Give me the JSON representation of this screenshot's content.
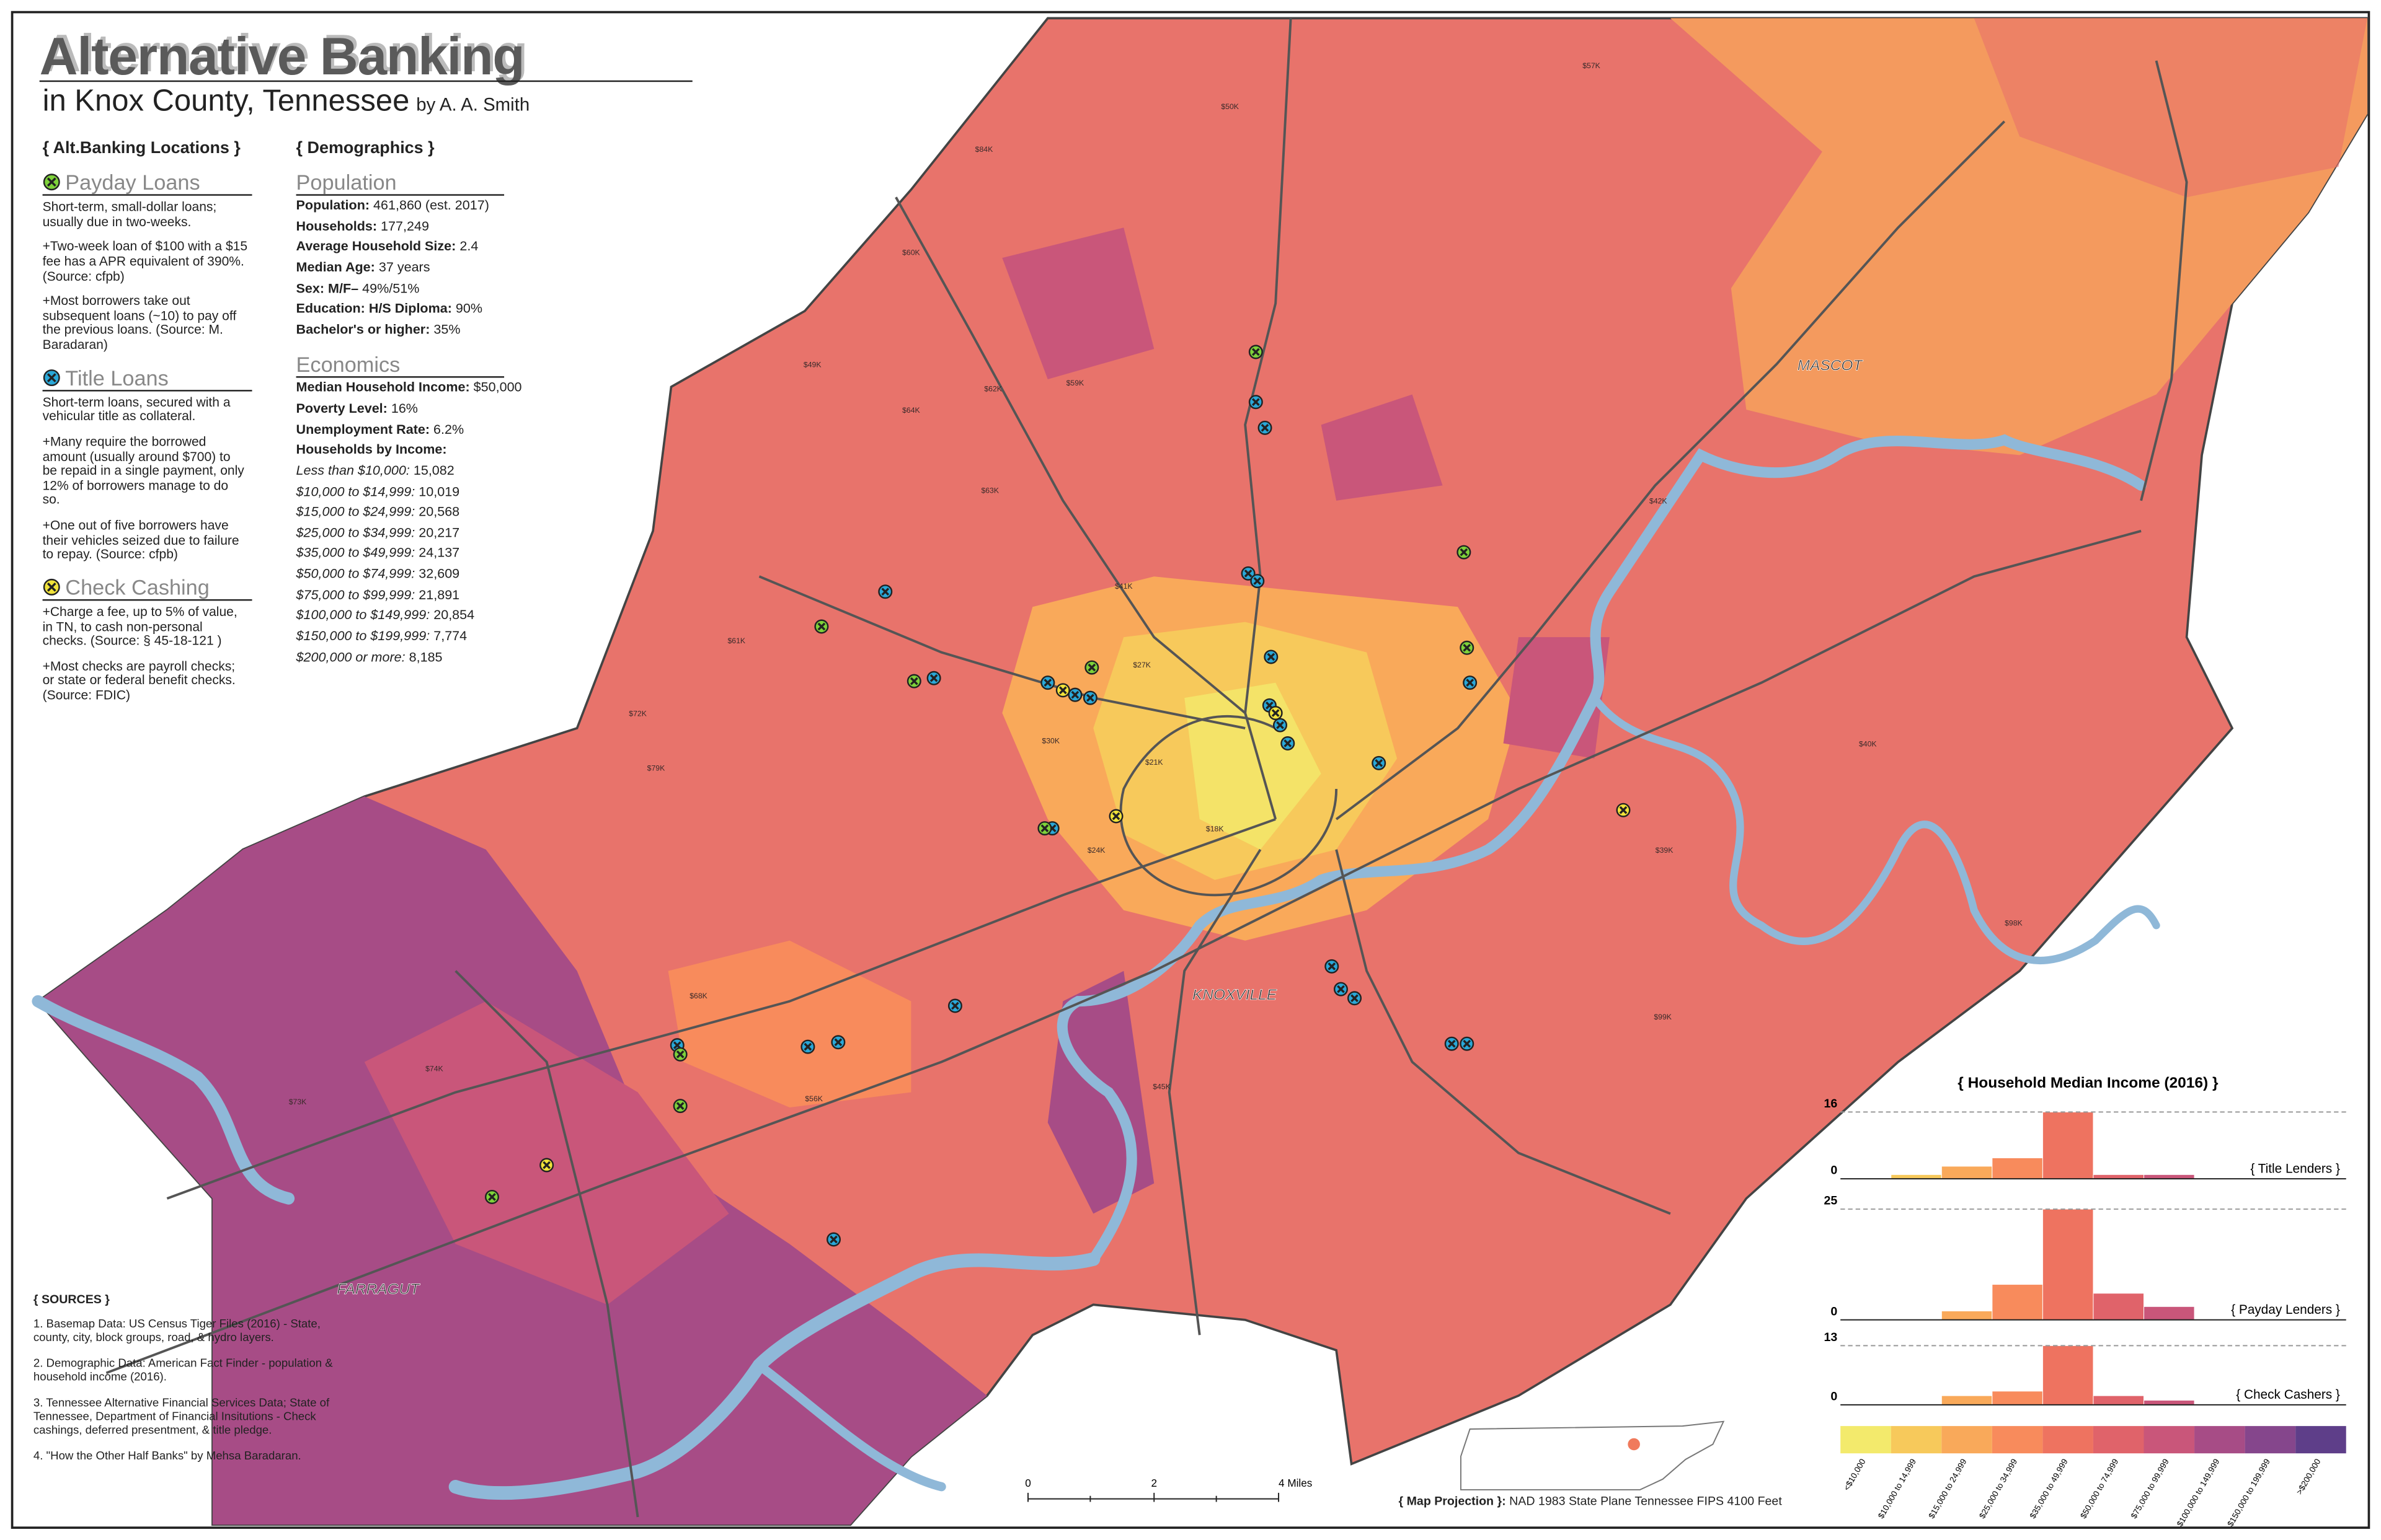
{
  "header": {
    "title": "Alternative Banking",
    "subtitle": "in Knox County, Tennessee",
    "author": "by A. A. Smith"
  },
  "locations": {
    "heading": "{ Alt.Banking Locations }",
    "sections": [
      {
        "title": "Payday Loans",
        "paragraphs": [
          "Short-term, small-dollar loans; usually due in two-weeks.",
          "+Two-week loan of $100 with a $15 fee has a APR equivalent of 390%. (Source: cfpb)",
          "+Most borrowers take out subsequent loans (~10) to pay off the previous loans. (Source: M. Baradaran)"
        ]
      },
      {
        "title": "Title Loans",
        "paragraphs": [
          "Short-term loans, secured with a vehicular title as collateral.",
          "+Many require the borrowed amount (usually around $700) to be repaid in a single payment, only 12% of borrowers manage to do so.",
          "+One out of five borrowers have their vehicles seized due to failure to repay. (Source: cfpb)"
        ]
      },
      {
        "title": "Check Cashing",
        "paragraphs": [
          "+Charge a fee, up to 5% of value, in TN, to cash non-personal checks. (Source: § 45-18-121 )",
          "+Most checks are payroll checks; or state or federal benefit checks. (Source: FDIC)"
        ]
      }
    ]
  },
  "demographics": {
    "heading": "{ Demographics }",
    "population": {
      "title": "Population",
      "rows": [
        {
          "label": "Population:",
          "value": "461,860 (est. 2017)"
        },
        {
          "label": "Households:",
          "value": "177,249"
        },
        {
          "label": "Average Household Size:",
          "value": "2.4"
        },
        {
          "label": "Median Age:",
          "value": "37 years"
        },
        {
          "label": "Sex: M/F–",
          "value": "49%/51%"
        },
        {
          "label": "Education: H/S Diploma:",
          "value": "90%"
        },
        {
          "label": "Bachelor's or higher:",
          "value": "35%"
        }
      ]
    },
    "economics": {
      "title": "Economics",
      "rows": [
        {
          "label": "Median Household Income:",
          "value": "$50,000"
        },
        {
          "label": "Poverty Level:",
          "value": "16%"
        },
        {
          "label": "Unemployment Rate:",
          "value": "6.2%"
        },
        {
          "label": "Households by Income:",
          "value": ""
        }
      ],
      "income_rows": [
        {
          "label": "Less than $10,000:",
          "value": "15,082"
        },
        {
          "label": "$10,000 to $14,999:",
          "value": "10,019"
        },
        {
          "label": "$15,000 to $24,999:",
          "value": "20,568"
        },
        {
          "label": "$25,000 to $34,999:",
          "value": "20,217"
        },
        {
          "label": "$35,000 to $49,999:",
          "value": "24,137"
        },
        {
          "label": "$50,000 to $74,999:",
          "value": "32,609"
        },
        {
          "label": "$75,000 to $99,999:",
          "value": "21,891"
        },
        {
          "label": "$100,000 to $149,999:",
          "value": "20,854"
        },
        {
          "label": "$150,000 to $199,999:",
          "value": "7,774"
        },
        {
          "label": "$200,000 or more:",
          "value": "8,185"
        }
      ]
    }
  },
  "sources": {
    "heading": "{ SOURCES }",
    "items": [
      "1. Basemap Data: US Census Tiger Files (2016) - State, county, city, block groups, road, & hydro layers.",
      "2. Demographic Data: American Fact Finder - population & household income (2016).",
      "3. Tennessee Alternative Financial Services Data; State of Tennessee, Department of Financial Insitutions - Check cashings, deferred presentment, & title pledge.",
      "4. \"How the Other Half Banks\" by Mehsa Baradaran."
    ]
  },
  "map_labels": {
    "places": [
      "MASCOT",
      "KNOXVILLE",
      "FARRAGUT"
    ],
    "income": [
      "$50K",
      "$57K",
      "$84K",
      "$60K",
      "$49K",
      "$64K",
      "$62K",
      "$59K",
      "$63K",
      "$42K",
      "$41K",
      "$40K",
      "$39K",
      "$27K",
      "$21K",
      "$30K",
      "$24K",
      "$18K",
      "$61K",
      "$72K",
      "$79K",
      "$68K",
      "$98K",
      "$45K",
      "$74K",
      "$56K",
      "$99K",
      "$73K"
    ]
  },
  "scale_bar": [
    "0",
    "2",
    "4 Miles"
  ],
  "projection": {
    "label": "{ Map Projection }:",
    "text": "NAD 1983 State Plane Tennessee FIPS 4100 Feet"
  },
  "histogram": {
    "title": "{ Household Median Income (2016)  }",
    "categories": [
      "<$10,000",
      "$10,000 to 14,999",
      "$15,000 to 24,999",
      "$25,000 to 34,999",
      "$35,000 to 49,999",
      "$50,000 to 74,999",
      "$75,000 to 99,999",
      "$100,000 to 149,999",
      "$150,000 to 199,999",
      ">$200,000"
    ],
    "colors": [
      "#f3ea6c",
      "#f7c95b",
      "#f9a95a",
      "#f88b5c",
      "#ee7360",
      "#e0636a",
      "#c9567a",
      "#a74c86",
      "#85468c",
      "#5e3e89"
    ],
    "panels": [
      {
        "name": "{ Title Lenders }",
        "values": [
          0,
          1,
          3,
          5,
          16,
          1,
          1,
          0,
          0,
          0
        ],
        "ylim": [
          0,
          16
        ],
        "yticks": [
          0,
          16
        ]
      },
      {
        "name": "{ Payday Lenders }",
        "values": [
          0,
          0,
          2,
          8,
          25,
          6,
          3,
          0,
          0,
          0
        ],
        "ylim": [
          0,
          25
        ],
        "yticks": [
          0,
          25
        ]
      },
      {
        "name": "{ Check Cashers }",
        "values": [
          0,
          0,
          2,
          3,
          13,
          2,
          1,
          0,
          0,
          0
        ],
        "ylim": [
          0,
          13
        ],
        "yticks": [
          0,
          13
        ]
      }
    ]
  }
}
